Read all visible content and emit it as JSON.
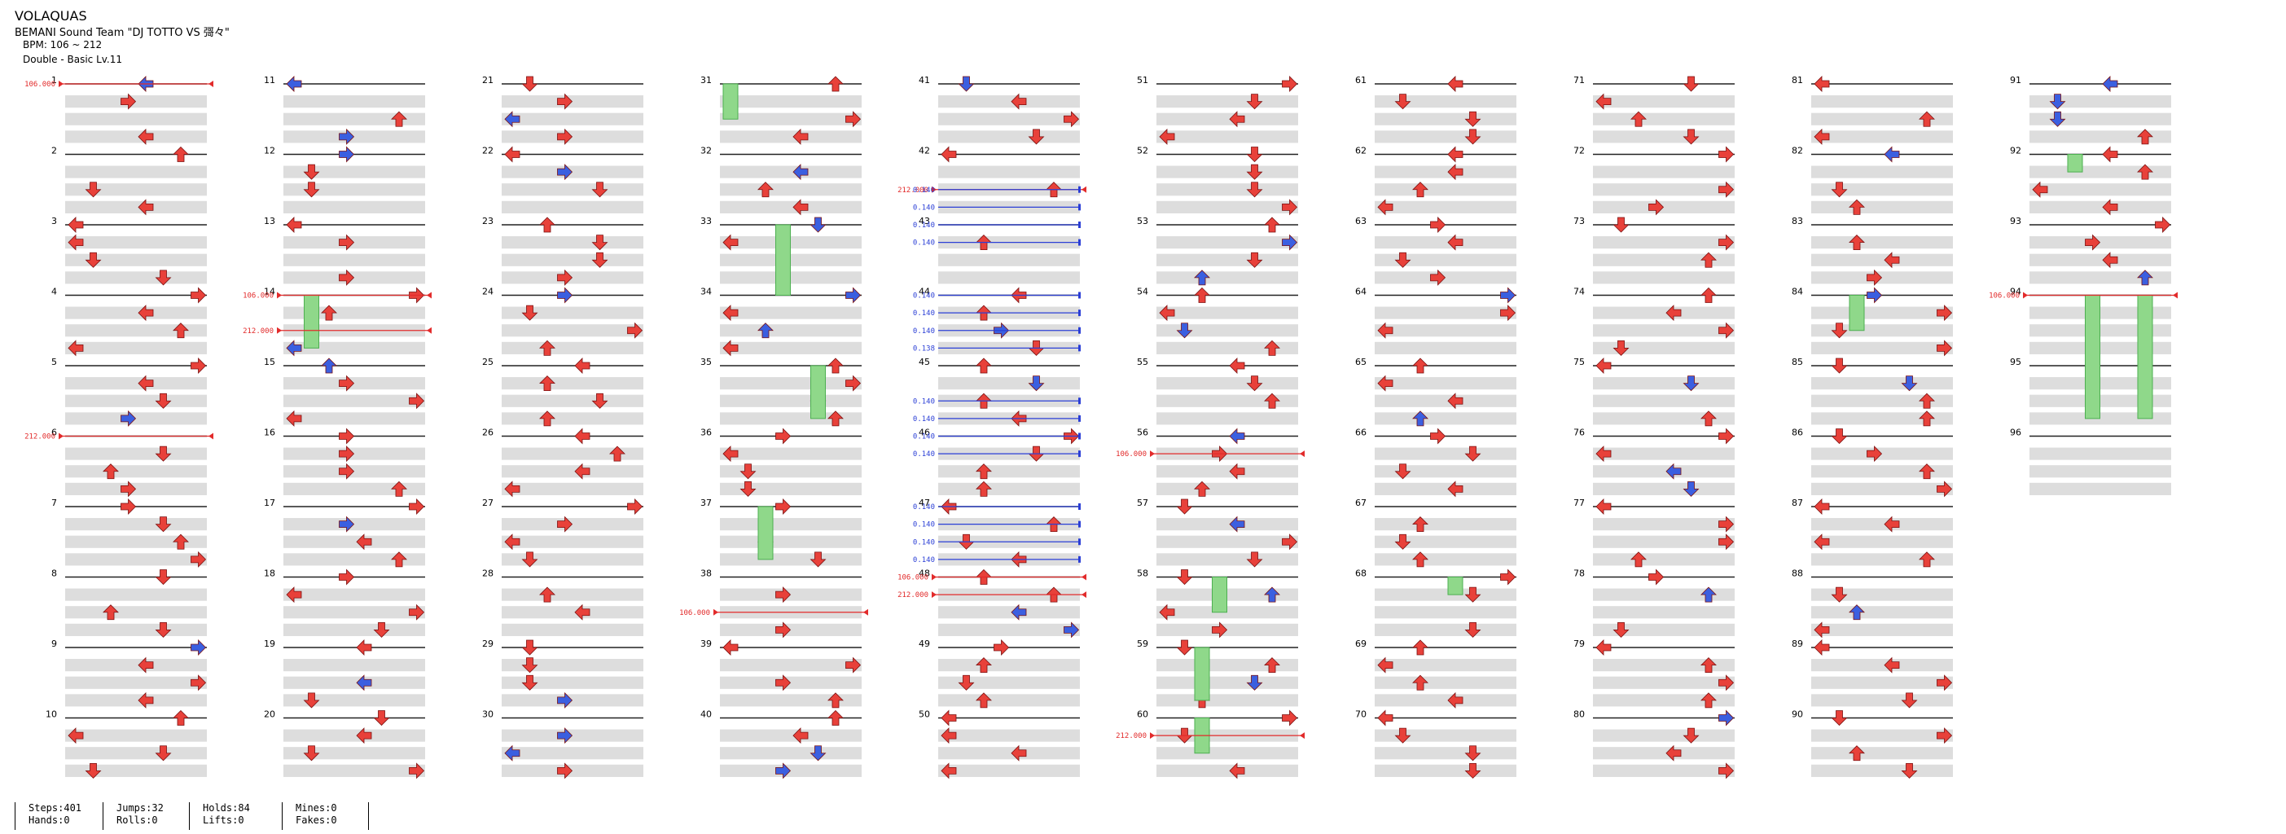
{
  "song": {
    "title": "VOLAQUAS",
    "artist": "BEMANI Sound Team \"DJ TOTTO VS 彁々\"",
    "bpm": "BPM: 106 ~ 212",
    "difficulty": "Double - Basic Lv.11"
  },
  "measures": {
    "count": 96,
    "per_column": 10,
    "rows_per_measure": 4
  },
  "bpm_changes": [
    {
      "measure": 1,
      "value": "106.000"
    },
    {
      "measure": 6,
      "value": "212.000"
    },
    {
      "measure": 14,
      "value": "106.000"
    },
    {
      "measure": 14.5,
      "value": "212.000"
    },
    {
      "measure": 38.5,
      "value": "106.000"
    },
    {
      "measure": 42.5,
      "value": "212.000"
    },
    {
      "measure": 48,
      "value": "106.000"
    },
    {
      "measure": 48.25,
      "value": "212.000"
    },
    {
      "measure": 56.25,
      "value": "106.000"
    },
    {
      "measure": 60.25,
      "value": "212.000"
    },
    {
      "measure": 94,
      "value": "106.000"
    }
  ],
  "stops": [
    {
      "measure": 42.5,
      "value": "0.140"
    },
    {
      "measure": 42.75,
      "value": "0.140"
    },
    {
      "measure": 43.0,
      "value": "0.140"
    },
    {
      "measure": 43.25,
      "value": "0.140"
    },
    {
      "measure": 44.0,
      "value": "0.140"
    },
    {
      "measure": 44.25,
      "value": "0.140"
    },
    {
      "measure": 44.5,
      "value": "0.140"
    },
    {
      "measure": 44.75,
      "value": "0.138"
    },
    {
      "measure": 45.5,
      "value": "0.140"
    },
    {
      "measure": 45.75,
      "value": "0.140"
    },
    {
      "measure": 46.0,
      "value": "0.140"
    },
    {
      "measure": 46.25,
      "value": "0.140"
    },
    {
      "measure": 47.0,
      "value": "0.140"
    },
    {
      "measure": 47.25,
      "value": "0.140"
    },
    {
      "measure": 47.5,
      "value": "0.140"
    },
    {
      "measure": 47.75,
      "value": "0.140"
    }
  ],
  "stats": [
    [
      "Steps:401",
      "Hands:0"
    ],
    [
      "Jumps:32",
      "Rolls:0"
    ],
    [
      "Holds:84",
      "Lifts:0"
    ],
    [
      "Mines:0",
      "Fakes:0"
    ]
  ],
  "colors": {
    "arrow_red": "#e8413a",
    "arrow_blue": "#3b5fe0",
    "hold_green": "#8fd88a",
    "hold_green_dark": "#4caf50",
    "bpm_line": "#e22b2b",
    "stop_line": "#2b3fd6",
    "row_shade": "#dddddd",
    "measure_line": "#222222"
  }
}
